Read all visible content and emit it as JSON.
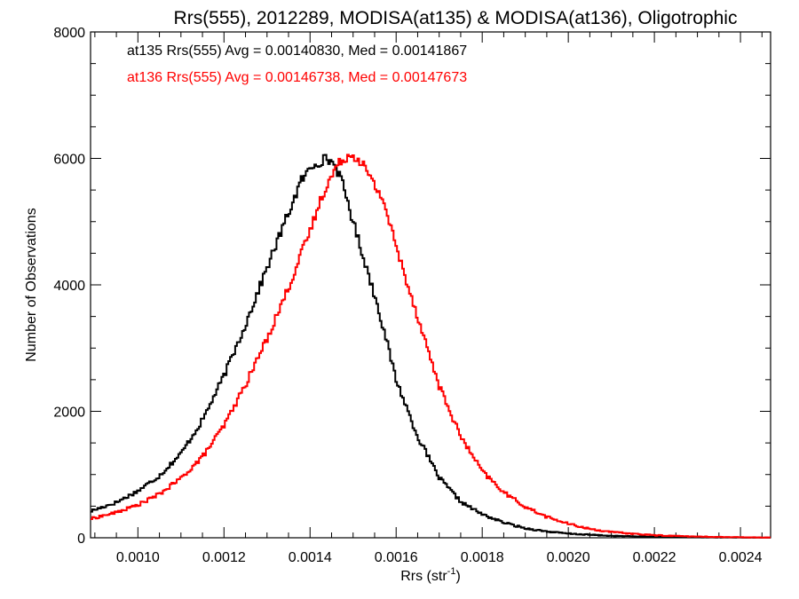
{
  "chart_data": {
    "type": "step-histogram",
    "title": "Rrs(555), 2012289, MODISA(at135) & MODISA(at136), Oligotrophic",
    "xlabel_main": "Rrs (str",
    "xlabel_sup": "-1",
    "xlabel_close": ")",
    "ylabel": "Number of Observations",
    "xlim": [
      0.00089,
      0.00247
    ],
    "ylim": [
      0,
      8000
    ],
    "x_ticks": [
      0.001,
      0.0012,
      0.0014,
      0.0016,
      0.0018,
      0.002,
      0.0022,
      0.0024
    ],
    "x_tick_labels": [
      "0.0010",
      "0.0012",
      "0.0014",
      "0.0016",
      "0.0018",
      "0.0020",
      "0.0022",
      "0.0024"
    ],
    "y_ticks": [
      0,
      2000,
      4000,
      6000,
      8000
    ],
    "y_tick_labels": [
      "0",
      "2000",
      "4000",
      "6000",
      "8000"
    ],
    "bin_width": 4e-06,
    "stats": [
      {
        "text": "at135 Rrs(555) Avg = 0.00140830, Med = 0.00141867",
        "color": "#000000"
      },
      {
        "text": "at136 Rrs(555) Avg = 0.00146738, Med = 0.00147673",
        "color": "#ff0000"
      }
    ],
    "series": [
      {
        "name": "at135",
        "color": "#000000",
        "points": [
          [
            0.00089,
            420
          ],
          [
            0.00095,
            560
          ],
          [
            0.001,
            740
          ],
          [
            0.00105,
            980
          ],
          [
            0.0011,
            1330
          ],
          [
            0.00115,
            1860
          ],
          [
            0.0012,
            2560
          ],
          [
            0.00125,
            3370
          ],
          [
            0.0013,
            4270
          ],
          [
            0.00135,
            5140
          ],
          [
            0.00138,
            5650
          ],
          [
            0.00141,
            5920
          ],
          [
            0.00144,
            6000
          ],
          [
            0.00146,
            5880
          ],
          [
            0.00148,
            5500
          ],
          [
            0.0015,
            5000
          ],
          [
            0.00153,
            4300
          ],
          [
            0.00156,
            3600
          ],
          [
            0.0016,
            2500
          ],
          [
            0.00165,
            1600
          ],
          [
            0.0017,
            950
          ],
          [
            0.00175,
            570
          ],
          [
            0.0018,
            370
          ],
          [
            0.00185,
            240
          ],
          [
            0.0019,
            150
          ],
          [
            0.00195,
            100
          ],
          [
            0.002,
            65
          ],
          [
            0.0021,
            30
          ],
          [
            0.0022,
            15
          ],
          [
            0.0023,
            8
          ],
          [
            0.0024,
            4
          ],
          [
            0.00247,
            2
          ]
        ]
      },
      {
        "name": "at136",
        "color": "#ff0000",
        "points": [
          [
            0.00089,
            300
          ],
          [
            0.00095,
            400
          ],
          [
            0.001,
            520
          ],
          [
            0.00105,
            690
          ],
          [
            0.0011,
            940
          ],
          [
            0.00115,
            1280
          ],
          [
            0.0012,
            1770
          ],
          [
            0.00125,
            2420
          ],
          [
            0.0013,
            3150
          ],
          [
            0.00135,
            3960
          ],
          [
            0.0014,
            4850
          ],
          [
            0.00143,
            5450
          ],
          [
            0.00146,
            5850
          ],
          [
            0.00148,
            6020
          ],
          [
            0.0015,
            6060
          ],
          [
            0.00152,
            5950
          ],
          [
            0.00154,
            5680
          ],
          [
            0.00157,
            5350
          ],
          [
            0.0016,
            4600
          ],
          [
            0.00165,
            3500
          ],
          [
            0.0017,
            2400
          ],
          [
            0.00175,
            1600
          ],
          [
            0.0018,
            1050
          ],
          [
            0.00185,
            720
          ],
          [
            0.0019,
            490
          ],
          [
            0.00195,
            330
          ],
          [
            0.002,
            220
          ],
          [
            0.00205,
            140
          ],
          [
            0.0021,
            90
          ],
          [
            0.0022,
            40
          ],
          [
            0.0023,
            18
          ],
          [
            0.0024,
            8
          ],
          [
            0.00247,
            4
          ]
        ]
      }
    ]
  }
}
